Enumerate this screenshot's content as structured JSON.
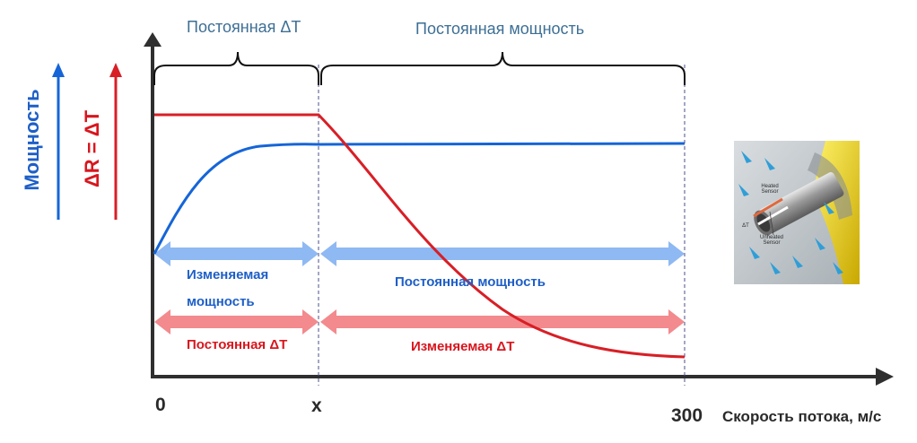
{
  "colors": {
    "power": "#1565d8",
    "resistance": "#d81f26",
    "power_band": "#8fb9f2",
    "delta_t_band": "#f38a8e",
    "axis": "#2f2f2f"
  },
  "brackets": {
    "left_label": "Постоянная ΔT",
    "right_label": "Постоянная мощность"
  },
  "y_labels": {
    "power": "Мощность",
    "delta": "ΔR = ΔT"
  },
  "x_axis": {
    "tick_0": "0",
    "tick_x": "x",
    "tick_300": "300",
    "title": "Скорость потока, м/с"
  },
  "bands": {
    "power_left_line1": "Изменяемая",
    "power_left_line2": "мощность",
    "power_right": "Постоянная мощность",
    "delta_left": "Постоянная ΔT",
    "delta_right": "Изменяемая ΔT"
  },
  "sensor": {
    "heated_line1": "Heated",
    "heated_line2": "Sensor",
    "unheated_line1": "Unheated",
    "unheated_line2": "Sensor",
    "delta": "ΔT"
  }
}
